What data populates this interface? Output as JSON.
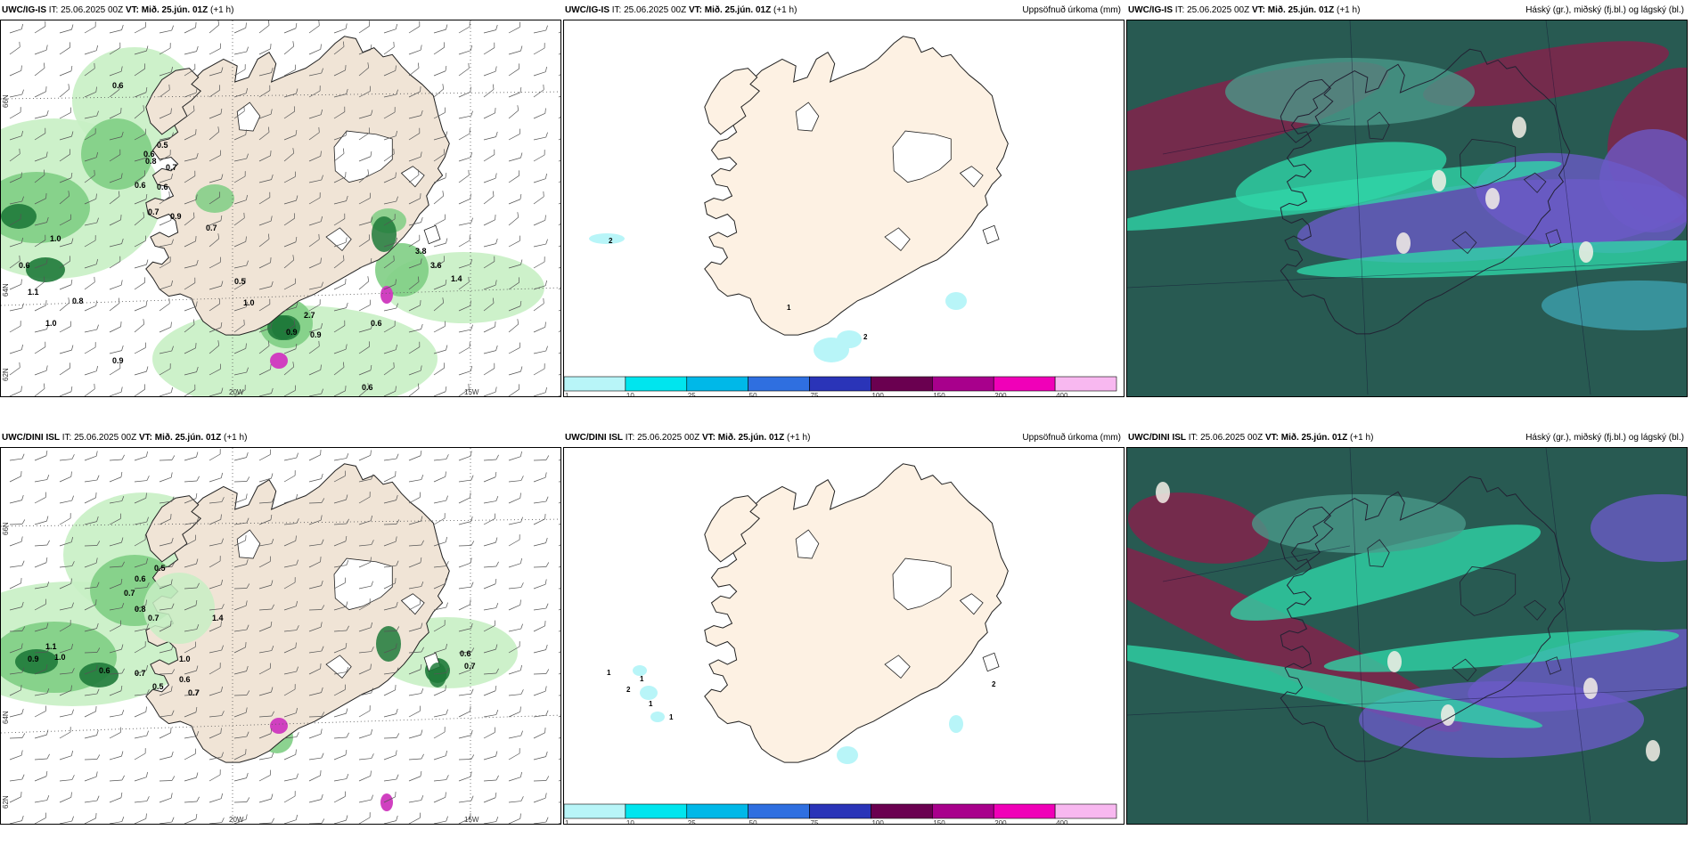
{
  "panels": [
    {
      "model": "UWC/IG-IS",
      "it": "IT: 25.06.2025 00Z",
      "vt_label": "VT:",
      "vt": "Mið. 25.jún. 01Z",
      "lead": "(+1 h)",
      "right": "",
      "kind": "wind"
    },
    {
      "model": "UWC/IG-IS",
      "it": "IT: 25.06.2025 00Z",
      "vt_label": "VT:",
      "vt": "Mið. 25.jún. 01Z",
      "lead": "(+1 h)",
      "right": "Uppsöfnuð úrkoma (mm)",
      "kind": "precip"
    },
    {
      "model": "UWC/IG-IS",
      "it": "IT: 25.06.2025 00Z",
      "vt_label": "VT:",
      "vt": "Mið. 25.jún. 01Z",
      "lead": "(+1 h)",
      "right": "Háský (gr.), miðský (fj.bl.) og lágský (bl.)",
      "kind": "cloud"
    },
    {
      "model": "UWC/DINI ISL",
      "it": "IT: 25.06.2025 00Z",
      "vt_label": "VT:",
      "vt": "Mið. 25.jún. 01Z",
      "lead": "(+1 h)",
      "right": "",
      "kind": "wind"
    },
    {
      "model": "UWC/DINI ISL",
      "it": "IT: 25.06.2025 00Z",
      "vt_label": "VT:",
      "vt": "Mið. 25.jún. 01Z",
      "lead": "(+1 h)",
      "right": "Uppsöfnuð úrkoma (mm)",
      "kind": "precip"
    },
    {
      "model": "UWC/DINI ISL",
      "it": "IT: 25.06.2025 00Z",
      "vt_label": "VT:",
      "vt": "Mið. 25.jún. 01Z",
      "lead": "(+1 h)",
      "right": "Háský (gr.), miðský (fj.bl.) og lágský (bl.)",
      "kind": "cloud"
    }
  ],
  "axis_labels": {
    "lon1": "20W",
    "lon2": "15W",
    "lat1": "66N",
    "lat2": "64N",
    "lat3": "62N"
  },
  "colorbar": {
    "ticks": [
      "1",
      "10",
      "25",
      "50",
      "75",
      "100",
      "150",
      "200",
      "400"
    ],
    "colors": [
      "#b8f5f8",
      "#00e5ee",
      "#00b8e8",
      "#2f6fe0",
      "#2a34b8",
      "#6a0050",
      "#a8008c",
      "#f000b8",
      "#f8b8f0"
    ]
  },
  "wind_labels_top": [
    "0.6",
    "0.5",
    "0.6",
    "0.8",
    "0.7",
    "0.6",
    "0.6",
    "0.7",
    "0.9",
    "0.7",
    "1.0",
    "0.6",
    "1.1",
    "0.8",
    "1.0",
    "0.5",
    "1.0",
    "0.9",
    "0.9",
    "2.7",
    "3.8",
    "3.6",
    "1.4",
    "0.6",
    "0.9",
    "0.6"
  ],
  "wind_labels_bottom": [
    "0.5",
    "0.6",
    "0.7",
    "0.8",
    "0.7",
    "1.1",
    "0.9",
    "1.0",
    "0.6",
    "0.7",
    "0.5",
    "1.4",
    "1.0",
    "0.6",
    "0.7",
    "0.6",
    "0.7"
  ],
  "precip_labels_top": [
    "2",
    "1",
    "2"
  ],
  "precip_labels_bottom": [
    "1",
    "1",
    "2",
    "1",
    "1",
    "2"
  ],
  "colors": {
    "land": "#f0e4d6",
    "land_precip": "#fdf1e3",
    "green_light": "#c8efc4",
    "green_mid": "#7fce84",
    "green_dark": "#1f7a3a",
    "cloud_dark": "#285a52",
    "cloud_teal": "#2fd6a8",
    "cloud_purple": "#6b5ac8",
    "cloud_red": "#8a1e4a"
  }
}
